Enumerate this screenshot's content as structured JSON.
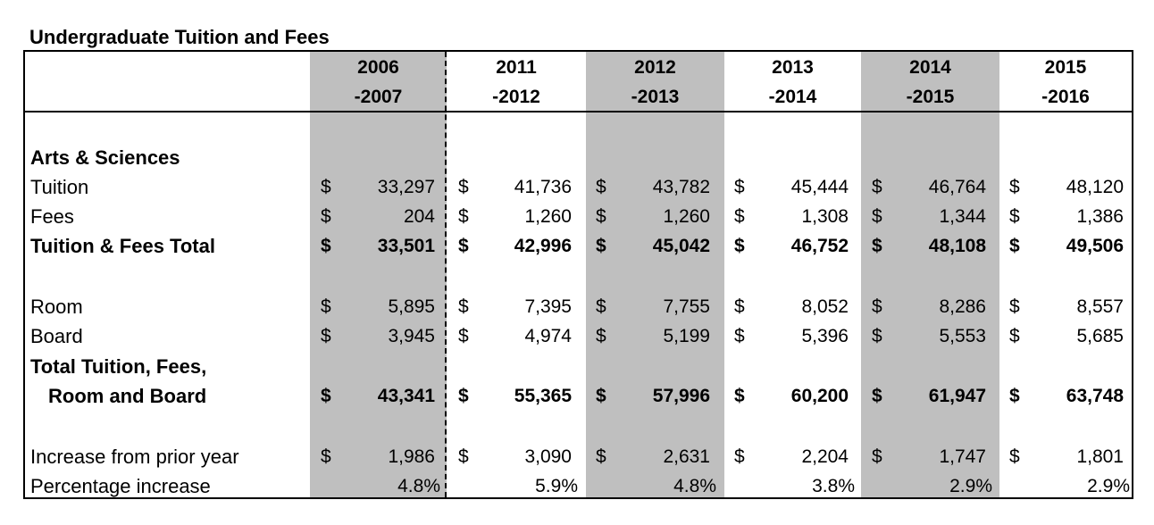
{
  "title": "Undergraduate Tuition and Fees",
  "years": [
    {
      "top": "2006",
      "bottom": "-2007"
    },
    {
      "top": "2011",
      "bottom": "-2012"
    },
    {
      "top": "2012",
      "bottom": "-2013"
    },
    {
      "top": "2013",
      "bottom": "-2014"
    },
    {
      "top": "2014",
      "bottom": "-2015"
    },
    {
      "top": "2015",
      "bottom": "-2016"
    }
  ],
  "section_label": "Arts & Sciences",
  "rows": {
    "tuition": {
      "label": "Tuition",
      "values": [
        "33,297",
        "41,736",
        "43,782",
        "45,444",
        "46,764",
        "48,120"
      ]
    },
    "fees": {
      "label": "Fees",
      "values": [
        "204",
        "1,260",
        "1,260",
        "1,308",
        "1,344",
        "1,386"
      ]
    },
    "tf_total": {
      "label": "Tuition & Fees Total",
      "values": [
        "33,501",
        "42,996",
        "45,042",
        "46,752",
        "48,108",
        "49,506"
      ]
    },
    "room": {
      "label": "Room",
      "values": [
        "5,895",
        "7,395",
        "7,755",
        "8,052",
        "8,286",
        "8,557"
      ]
    },
    "board": {
      "label": "Board",
      "values": [
        "3,945",
        "4,974",
        "5,199",
        "5,396",
        "5,553",
        "5,685"
      ]
    },
    "grand_total": {
      "label_line1": "Total Tuition, Fees,",
      "label_line2": "Room and Board",
      "values": [
        "43,341",
        "55,365",
        "57,996",
        "60,200",
        "61,947",
        "63,748"
      ]
    },
    "increase": {
      "label": "Increase from prior year",
      "values": [
        "1,986",
        "3,090",
        "2,631",
        "2,204",
        "1,747",
        "1,801"
      ]
    },
    "pct": {
      "label": "Percentage increase",
      "values": [
        "4.8%",
        "5.9%",
        "4.8%",
        "3.8%",
        "2.9%",
        "2.9%"
      ]
    }
  },
  "currency_symbol": "$",
  "shade_color": "#bfbfbf"
}
